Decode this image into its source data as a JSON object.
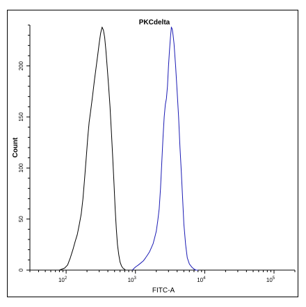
{
  "chart_data": {
    "type": "line",
    "title": "PKCdelta",
    "xlabel": "FITC-A",
    "ylabel": "Count",
    "x_scale": "log",
    "xlim": [
      30,
      200000
    ],
    "ylim": [
      0,
      240
    ],
    "x_ticks": [
      {
        "base": "10",
        "exp": "2",
        "value": 100
      },
      {
        "base": "10",
        "exp": "3",
        "value": 1000
      },
      {
        "base": "10",
        "exp": "4",
        "value": 10000
      },
      {
        "base": "10",
        "exp": "5",
        "value": 100000
      }
    ],
    "y_ticks": [
      {
        "label": "0",
        "value": 0
      },
      {
        "label": "50",
        "value": 50
      },
      {
        "label": "100",
        "value": 100
      },
      {
        "label": "150",
        "value": 150
      },
      {
        "label": "200",
        "value": 200
      }
    ],
    "grid": false,
    "series": [
      {
        "color": "#000000",
        "x": [
          80,
          95,
          105,
          115,
          125,
          135,
          145,
          155,
          165,
          175,
          185,
          195,
          205,
          215,
          225,
          240,
          255,
          270,
          285,
          300,
          315,
          330,
          345,
          360,
          375,
          390,
          410,
          430,
          450,
          470,
          490,
          510,
          530,
          550,
          575,
          600,
          630,
          660,
          690,
          720,
          760,
          800
        ],
        "y": [
          0,
          2,
          5,
          12,
          20,
          28,
          35,
          45,
          55,
          70,
          90,
          110,
          130,
          145,
          155,
          170,
          185,
          198,
          210,
          222,
          232,
          238,
          235,
          228,
          215,
          200,
          180,
          160,
          135,
          110,
          85,
          60,
          40,
          25,
          15,
          8,
          4,
          2,
          1,
          0,
          0,
          0
        ]
      },
      {
        "color": "#1a1ab4",
        "x": [
          900,
          1000,
          1100,
          1200,
          1300,
          1400,
          1500,
          1600,
          1700,
          1800,
          1900,
          2000,
          2100,
          2200,
          2300,
          2400,
          2500,
          2600,
          2700,
          2800,
          2900,
          3000,
          3100,
          3200,
          3300,
          3400,
          3500,
          3600,
          3800,
          4000,
          4200,
          4400,
          4600,
          4800,
          5000,
          5300,
          5600,
          6000,
          6500,
          7000,
          7500,
          8000
        ],
        "y": [
          0,
          3,
          5,
          7,
          9,
          12,
          15,
          18,
          22,
          26,
          32,
          38,
          48,
          60,
          80,
          105,
          130,
          150,
          162,
          168,
          180,
          200,
          215,
          228,
          238,
          236,
          230,
          222,
          200,
          175,
          150,
          120,
          95,
          70,
          45,
          25,
          12,
          6,
          3,
          1,
          0,
          0
        ]
      }
    ]
  }
}
